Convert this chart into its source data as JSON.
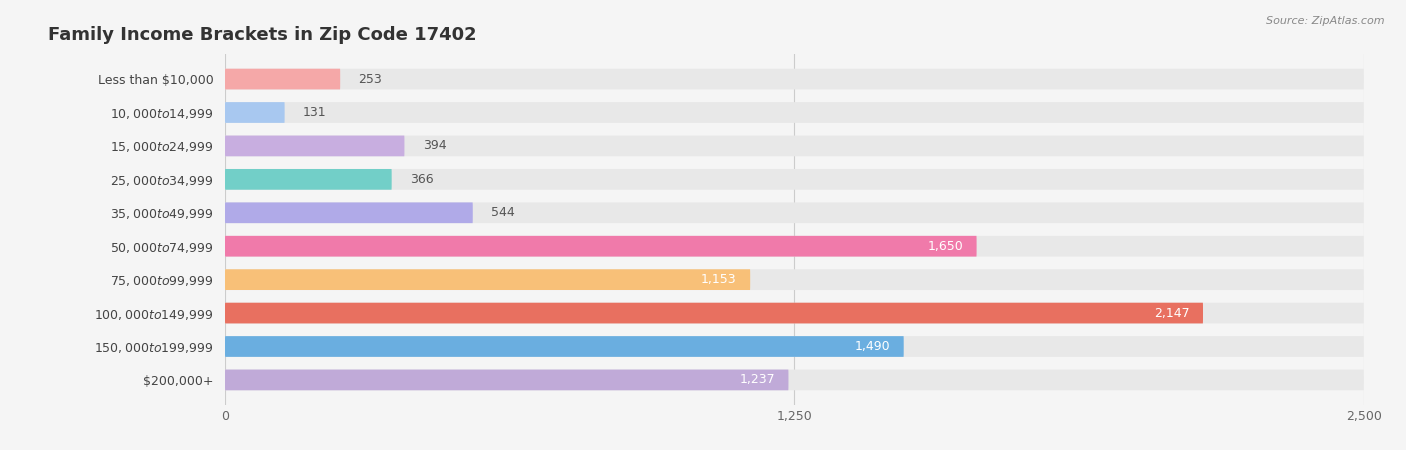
{
  "title": "Family Income Brackets in Zip Code 17402",
  "source": "Source: ZipAtlas.com",
  "categories": [
    "Less than $10,000",
    "$10,000 to $14,999",
    "$15,000 to $24,999",
    "$25,000 to $34,999",
    "$35,000 to $49,999",
    "$50,000 to $74,999",
    "$75,000 to $99,999",
    "$100,000 to $149,999",
    "$150,000 to $199,999",
    "$200,000+"
  ],
  "values": [
    253,
    131,
    394,
    366,
    544,
    1650,
    1153,
    2147,
    1490,
    1237
  ],
  "bar_colors": [
    "#f5a8a8",
    "#a8c8f0",
    "#c8aee0",
    "#72cfc8",
    "#b0aae8",
    "#f07aaa",
    "#f8c078",
    "#e87060",
    "#6aaee0",
    "#c0aad8"
  ],
  "xlim": [
    0,
    2500
  ],
  "xticks": [
    0,
    1250,
    2500
  ],
  "background_color": "#f5f5f5",
  "bar_bg_color": "#e8e8e8",
  "title_fontsize": 13,
  "label_fontsize": 9,
  "value_fontsize": 9
}
